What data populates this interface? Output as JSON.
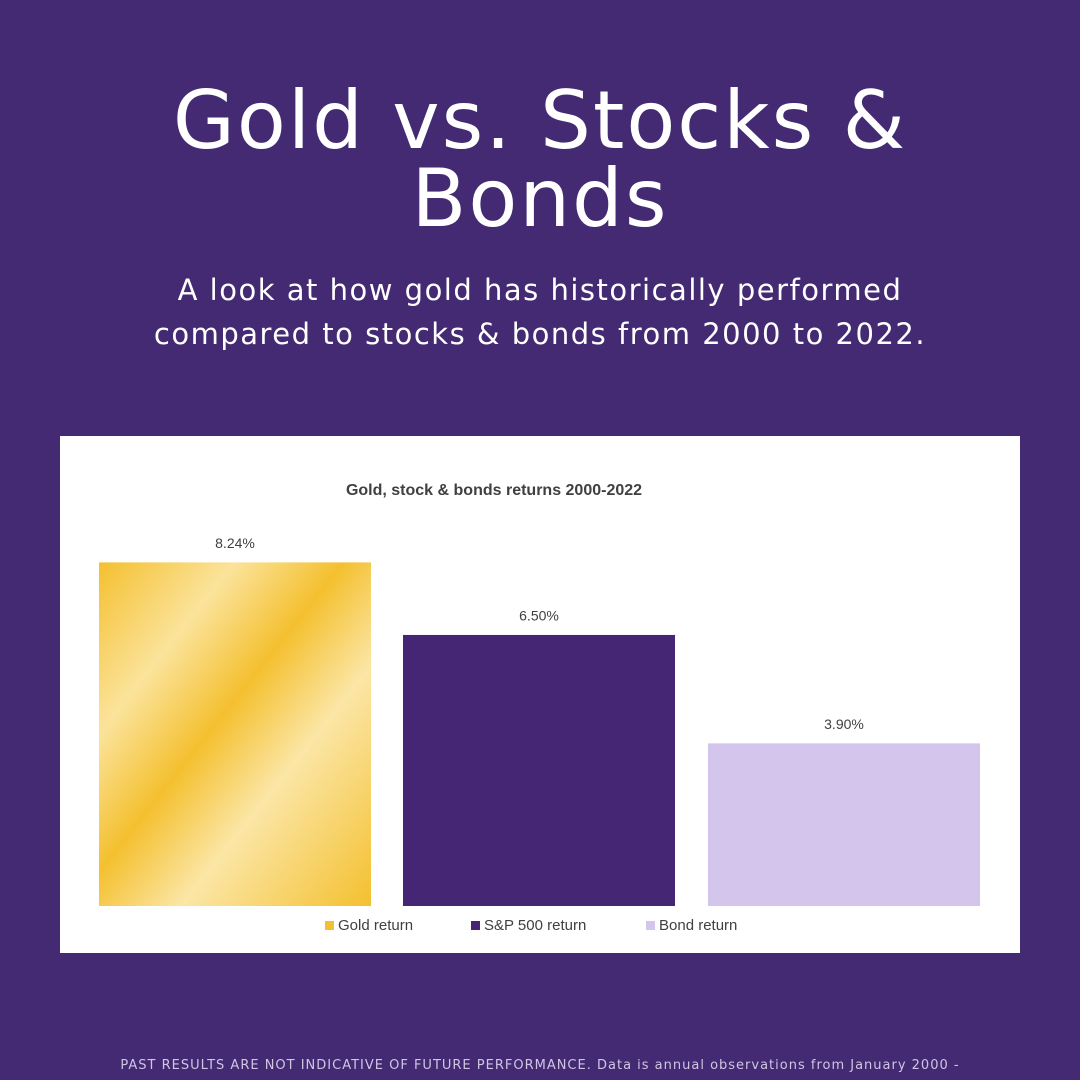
{
  "header": {
    "title": "Gold vs. Stocks & Bonds",
    "subtitle": "A look at how gold has historically performed compared to stocks & bonds from 2000 to 2022."
  },
  "chart_data": {
    "type": "bar",
    "title": "Gold, stock & bonds returns 2000-2022",
    "categories": [
      null
    ],
    "series": [
      {
        "name": "Gold return",
        "color": "#f4c02f",
        "values": [
          8.24
        ],
        "value_labels": [
          "8.24%"
        ]
      },
      {
        "name": "S&P 500 return",
        "color": "#452674",
        "values": [
          6.5
        ],
        "value_labels": [
          "6.50%"
        ]
      },
      {
        "name": "Bond return",
        "color": "#d3c5ec",
        "values": [
          3.9
        ],
        "value_labels": [
          "3.90%"
        ]
      }
    ],
    "legend": "bottom"
  },
  "footer": {
    "disclaimer": "PAST RESULTS ARE NOT INDICATIVE OF FUTURE PERFORMANCE. Data is annual observations from January 2000 -"
  }
}
